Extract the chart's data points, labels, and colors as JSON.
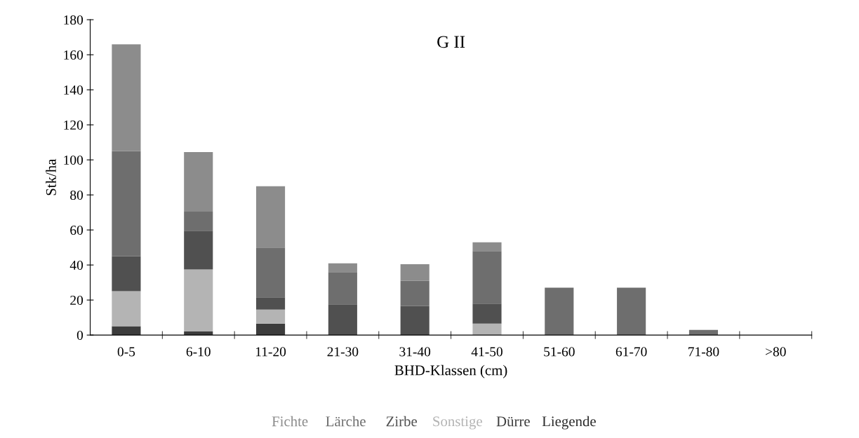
{
  "chart_data": {
    "type": "bar",
    "title": "G II",
    "xlabel": "BHD-Klassen (cm)",
    "ylabel": "Stk/ha",
    "categories": [
      "0-5",
      "6-10",
      "11-20",
      "21-30",
      "31-40",
      "41-50",
      "51-60",
      "61-70",
      "71-80",
      ">80"
    ],
    "stacked": true,
    "ylim": [
      0,
      180
    ],
    "yticks": [
      0,
      20,
      40,
      60,
      80,
      100,
      120,
      140,
      160,
      180
    ],
    "grid": false,
    "legend": "bottom",
    "series": [
      {
        "name": "Liegende",
        "color": "#2a2a2a",
        "values": [
          0,
          0,
          0,
          0,
          0,
          0,
          0,
          0,
          0,
          0
        ]
      },
      {
        "name": "Dürre",
        "color": "#3c3c3c",
        "values": [
          5,
          2,
          6.5,
          null,
          null,
          null,
          null,
          null,
          0,
          0
        ]
      },
      {
        "name": "Sonstige",
        "color": "#b4b4b4",
        "values": [
          20,
          35.5,
          8,
          0,
          0,
          6.5,
          0,
          0,
          0,
          0
        ]
      },
      {
        "name": "Zirbe",
        "color": "#505050",
        "values": [
          20,
          22,
          7,
          17.5,
          16.5,
          11.5,
          0,
          0,
          0,
          0
        ]
      },
      {
        "name": "Lärche",
        "color": "#6e6e6e",
        "values": [
          60,
          11,
          28.5,
          18.5,
          14.5,
          30,
          27,
          27,
          3,
          0
        ]
      },
      {
        "name": "Fichte",
        "color": "#8c8c8c",
        "values": [
          61,
          34,
          35,
          5,
          9.5,
          5,
          0,
          0,
          0,
          0
        ]
      }
    ]
  }
}
